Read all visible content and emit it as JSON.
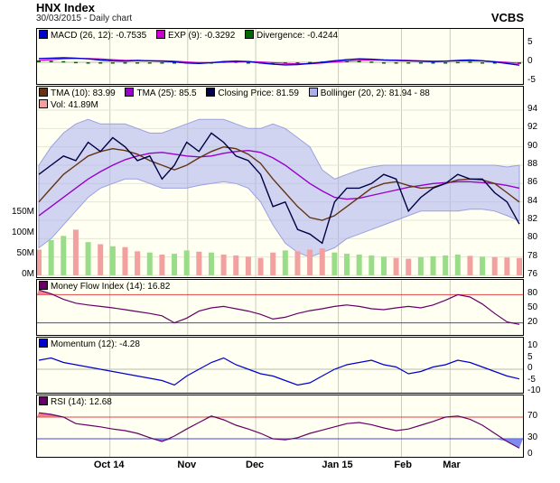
{
  "header": {
    "title": "HNX Index",
    "subtitle": "30/03/2015 - Daily chart",
    "brand": "VCBS"
  },
  "x_labels": [
    "Oct 14",
    "Nov",
    "Dec",
    "Jan 15",
    "Feb",
    "Mar"
  ],
  "colors": {
    "panel_bg": "#fffff2",
    "macd": "#0000cc",
    "signal": "#cc00cc",
    "diverg": "#006600",
    "tma10": "#663311",
    "tma25": "#9900cc",
    "price": "#000044",
    "bollinger": "#aab0ee",
    "vol": "#f3a0a0",
    "vol_up": "#99dd88",
    "mfi": "#660066",
    "momentum": "#0000cc",
    "rsi": "#660066"
  },
  "chart_data": [
    {
      "type": "line",
      "name": "macd-panel",
      "legend": [
        {
          "label": "MACD (26, 12): -0.7535",
          "color": "#0000cc"
        },
        {
          "label": "EXP (9): -0.3292",
          "color": "#cc00cc"
        },
        {
          "label": "Divergence: -0.4244",
          "color": "#006600"
        }
      ],
      "y_ticks": [
        "5",
        "0",
        "-5"
      ],
      "ylim": [
        -5,
        5
      ],
      "series": [
        {
          "name": "MACD",
          "values": [
            1.0,
            1.1,
            1.2,
            1.1,
            0.9,
            0.6,
            0.4,
            0.3,
            0.5,
            0.4,
            0.3,
            0.1,
            -0.2,
            -0.3,
            -0.1,
            0.2,
            0.3,
            0.2,
            -0.2,
            -0.5,
            -0.7,
            -0.6,
            -0.3,
            0.0,
            0.4,
            0.7,
            0.9,
            0.8,
            0.6,
            0.5,
            0.4,
            0.3,
            0.2,
            0.3,
            0.5,
            0.6,
            0.4,
            0.1,
            -0.3,
            -0.75
          ]
        },
        {
          "name": "EXP",
          "values": [
            0.5,
            0.7,
            0.9,
            1.0,
            1.0,
            0.9,
            0.7,
            0.5,
            0.5,
            0.4,
            0.4,
            0.3,
            0.1,
            -0.1,
            -0.1,
            0.0,
            0.1,
            0.2,
            0.1,
            -0.1,
            -0.3,
            -0.4,
            -0.4,
            -0.2,
            0.1,
            0.3,
            0.5,
            0.6,
            0.6,
            0.6,
            0.5,
            0.4,
            0.3,
            0.3,
            0.4,
            0.4,
            0.4,
            0.2,
            0.0,
            -0.33
          ]
        }
      ]
    },
    {
      "type": "line",
      "name": "price-panel",
      "legend": [
        {
          "label": "TMA (10): 83.99",
          "color": "#663311"
        },
        {
          "label": "TMA (25): 85.5",
          "color": "#9900cc"
        },
        {
          "label": "Closing Price: 81.59",
          "color": "#000044"
        },
        {
          "label": "Bollinger (20, 2): 81.94 - 88",
          "color": "#aab0ee"
        },
        {
          "label": "Vol: 41.89M",
          "color": "#f3a0a0"
        }
      ],
      "y_ticks": [
        "94",
        "92",
        "90",
        "88",
        "86",
        "84",
        "82",
        "80",
        "78",
        "76"
      ],
      "vol_ticks": [
        "150M",
        "100M",
        "50M",
        "0M"
      ],
      "ylim": [
        76,
        94
      ],
      "series": [
        {
          "name": "Closing Price",
          "values": [
            87,
            88,
            89,
            88.5,
            90.5,
            89.5,
            91,
            90,
            88.5,
            89,
            86.5,
            88,
            90.5,
            89.5,
            91.5,
            90.5,
            89,
            88.5,
            87,
            83.5,
            84,
            81,
            80.5,
            79.5,
            84,
            85.5,
            85.5,
            86,
            87,
            86.5,
            83,
            84.5,
            85.5,
            86,
            87,
            86.5,
            86.5,
            85,
            84,
            81.59
          ]
        },
        {
          "name": "TMA (10)",
          "values": [
            84,
            85.5,
            87,
            88,
            89,
            89.5,
            89.8,
            89.6,
            89.2,
            88.5,
            88,
            87.5,
            88,
            88.8,
            89.5,
            90,
            89.8,
            89.2,
            88.2,
            86.5,
            85,
            83.5,
            82.3,
            82,
            82.5,
            83.5,
            84.5,
            85.5,
            86,
            86.2,
            85.8,
            85.5,
            85.6,
            86,
            86.4,
            86.5,
            86.4,
            86,
            85,
            83.99
          ]
        },
        {
          "name": "TMA (25)",
          "values": [
            82.5,
            83.5,
            84.5,
            85.5,
            86.5,
            87.3,
            88,
            88.6,
            89,
            89.3,
            89.4,
            89.2,
            89,
            88.9,
            89,
            89.3,
            89.5,
            89.6,
            89.4,
            88.8,
            88,
            87,
            86,
            85.2,
            84.5,
            84.3,
            84.4,
            84.7,
            85,
            85.3,
            85.6,
            85.8,
            86,
            86.1,
            86.2,
            86.2,
            86.1,
            86,
            85.8,
            85.5
          ]
        },
        {
          "name": "Bollinger Upper",
          "values": [
            88,
            90,
            91.5,
            92.5,
            93,
            92.5,
            92.5,
            92.5,
            92,
            91.5,
            91.5,
            92,
            92.5,
            93,
            93,
            93,
            92.5,
            92,
            92,
            92.5,
            92,
            91,
            90,
            87.5,
            86.5,
            87,
            87.5,
            87.8,
            88,
            88,
            88,
            88,
            88,
            88,
            88,
            88,
            88,
            88,
            87.8,
            88
          ]
        },
        {
          "name": "Bollinger Lower",
          "values": [
            79,
            80,
            81.5,
            83,
            84.5,
            85.5,
            86,
            86.5,
            86.5,
            86,
            85.5,
            85.5,
            85.5,
            85.8,
            86,
            86.2,
            86,
            85.5,
            84,
            81.5,
            79.5,
            78.5,
            78,
            78.5,
            79,
            80,
            80.5,
            81,
            81.5,
            82,
            82.5,
            83,
            83,
            83,
            83,
            83.2,
            83.2,
            83,
            82.5,
            81.94
          ]
        }
      ],
      "volume": [
        62,
        85,
        95,
        110,
        80,
        75,
        70,
        68,
        58,
        55,
        50,
        52,
        60,
        57,
        55,
        50,
        48,
        45,
        42,
        55,
        60,
        58,
        62,
        65,
        55,
        52,
        50,
        48,
        45,
        42,
        40,
        44,
        46,
        48,
        50,
        47,
        45,
        44,
        43,
        41.89
      ]
    },
    {
      "type": "line",
      "name": "mfi-panel",
      "legend": [
        {
          "label": "Money Flow Index (14): 16.82",
          "color": "#660066"
        }
      ],
      "y_ticks": [
        "80",
        "50",
        "20"
      ],
      "ylim": [
        0,
        100
      ],
      "levels": [
        80,
        20
      ],
      "series": [
        {
          "name": "MFI",
          "values": [
            90,
            82,
            70,
            62,
            58,
            55,
            52,
            48,
            44,
            40,
            35,
            20,
            30,
            45,
            52,
            55,
            50,
            45,
            38,
            28,
            32,
            40,
            46,
            50,
            55,
            58,
            55,
            50,
            48,
            52,
            55,
            52,
            58,
            68,
            80,
            75,
            60,
            40,
            22,
            16.82
          ]
        }
      ]
    },
    {
      "type": "line",
      "name": "momentum-panel",
      "legend": [
        {
          "label": "Momentum (12): -4.28",
          "color": "#0000cc"
        }
      ],
      "y_ticks": [
        "10",
        "5",
        "0",
        "-5",
        "-10"
      ],
      "ylim": [
        -10,
        10
      ],
      "series": [
        {
          "name": "Momentum",
          "values": [
            4,
            5,
            3,
            2,
            1,
            0,
            -1,
            -2,
            -3,
            -4,
            -5,
            -7,
            -3,
            0,
            3,
            5,
            2,
            0,
            -2,
            -3,
            -5,
            -7,
            -6,
            -3,
            0,
            2,
            3,
            4,
            2,
            1,
            -2,
            -1,
            1,
            2,
            4,
            3,
            1,
            -1,
            -3,
            -4.28
          ]
        }
      ]
    },
    {
      "type": "line",
      "name": "rsi-panel",
      "legend": [
        {
          "label": "RSI (14): 12.68",
          "color": "#660066"
        }
      ],
      "y_ticks": [
        "70",
        "30",
        "0"
      ],
      "ylim": [
        0,
        100
      ],
      "levels": [
        70,
        30
      ],
      "series": [
        {
          "name": "RSI",
          "values": [
            78,
            75,
            70,
            58,
            55,
            52,
            48,
            45,
            40,
            32,
            25,
            35,
            48,
            60,
            72,
            65,
            55,
            48,
            40,
            30,
            28,
            32,
            40,
            46,
            52,
            58,
            60,
            56,
            50,
            45,
            48,
            55,
            62,
            70,
            72,
            66,
            55,
            40,
            25,
            12.68
          ]
        }
      ]
    }
  ]
}
